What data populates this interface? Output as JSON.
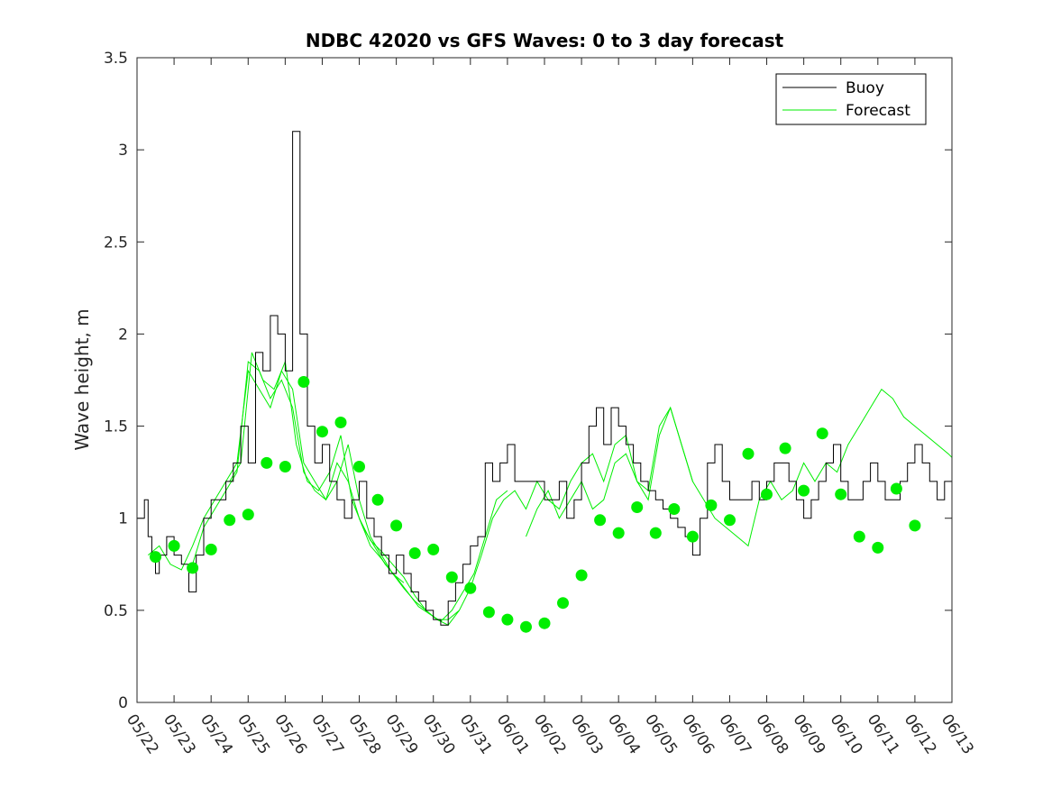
{
  "chart_data": {
    "type": "line",
    "title": "NDBC 42020 vs GFS Waves: 0 to 3 day forecast",
    "xlabel": "",
    "ylabel": "Wave height, m",
    "ylim": [
      0,
      3.5
    ],
    "yticks": [
      "0",
      "0.5",
      "1",
      "1.5",
      "2",
      "2.5",
      "3",
      "3.5"
    ],
    "xticks": [
      "05/22",
      "05/23",
      "05/24",
      "05/25",
      "05/26",
      "05/27",
      "05/28",
      "05/29",
      "05/30",
      "05/31",
      "06/01",
      "06/02",
      "06/03",
      "06/04",
      "06/05",
      "06/06",
      "06/07",
      "06/08",
      "06/09",
      "06/10",
      "06/11",
      "06/12",
      "06/13"
    ],
    "xlim_days": [
      0,
      22
    ],
    "grid": false,
    "legend": {
      "placement": "top-right",
      "entries": [
        "Buoy",
        "Forecast"
      ]
    },
    "colors": {
      "buoy": "#000000",
      "forecast": "#00ee00"
    },
    "buoy": {
      "name": "Buoy",
      "x": [
        0,
        0.2,
        0.3,
        0.4,
        0.5,
        0.6,
        0.8,
        1.0,
        1.2,
        1.4,
        1.6,
        1.8,
        2.0,
        2.2,
        2.4,
        2.6,
        2.8,
        3.0,
        3.2,
        3.4,
        3.6,
        3.8,
        4.0,
        4.2,
        4.4,
        4.6,
        4.8,
        5.0,
        5.2,
        5.4,
        5.6,
        5.8,
        6.0,
        6.2,
        6.4,
        6.6,
        6.8,
        7.0,
        7.2,
        7.4,
        7.6,
        7.8,
        8.0,
        8.2,
        8.4,
        8.6,
        8.8,
        9.0,
        9.2,
        9.4,
        9.6,
        9.8,
        10.0,
        10.2,
        10.4,
        10.6,
        10.8,
        11.0,
        11.2,
        11.4,
        11.6,
        11.8,
        12.0,
        12.2,
        12.4,
        12.6,
        12.8,
        13.0,
        13.2,
        13.4,
        13.6,
        13.8,
        14.0,
        14.2,
        14.4,
        14.6,
        14.8,
        15.0,
        15.2,
        15.4,
        15.6,
        15.8,
        16.0,
        16.2,
        16.4,
        16.6,
        16.8,
        17.0,
        17.2,
        17.4,
        17.6,
        17.8,
        18.0,
        18.2,
        18.4,
        18.6,
        18.8,
        19.0,
        19.2,
        19.4,
        19.6,
        19.8,
        20.0,
        20.2,
        20.4,
        20.6,
        20.8,
        21.0,
        21.2,
        21.4,
        21.6,
        21.8,
        22.0
      ],
      "y": [
        1.0,
        1.1,
        0.9,
        0.8,
        0.7,
        0.8,
        0.9,
        0.8,
        0.75,
        0.6,
        0.8,
        1.0,
        1.1,
        1.1,
        1.2,
        1.3,
        1.5,
        1.3,
        1.9,
        1.8,
        2.1,
        2.0,
        1.8,
        3.1,
        2.0,
        1.5,
        1.3,
        1.4,
        1.2,
        1.1,
        1.0,
        1.1,
        1.2,
        1.0,
        0.9,
        0.8,
        0.7,
        0.8,
        0.7,
        0.6,
        0.55,
        0.5,
        0.45,
        0.42,
        0.55,
        0.65,
        0.75,
        0.85,
        0.9,
        1.3,
        1.2,
        1.3,
        1.4,
        1.2,
        1.2,
        1.2,
        1.2,
        1.1,
        1.1,
        1.2,
        1.0,
        1.1,
        1.3,
        1.5,
        1.6,
        1.4,
        1.6,
        1.5,
        1.4,
        1.3,
        1.2,
        1.15,
        1.1,
        1.05,
        1.0,
        0.95,
        0.9,
        0.8,
        1.0,
        1.3,
        1.4,
        1.2,
        1.1,
        1.1,
        1.1,
        1.2,
        1.1,
        1.2,
        1.3,
        1.3,
        1.2,
        1.1,
        1.0,
        1.1,
        1.2,
        1.3,
        1.4,
        1.2,
        1.1,
        1.1,
        1.2,
        1.3,
        1.2,
        1.1,
        1.1,
        1.2,
        1.3,
        1.4,
        1.3,
        1.2,
        1.1,
        1.2,
        1.3
      ]
    },
    "forecast_runs": [
      {
        "x": [
          0.3,
          0.6,
          0.9,
          1.2,
          1.5,
          1.8,
          2.1,
          2.4,
          2.7,
          3.0,
          3.3,
          3.6,
          3.9,
          4.2,
          4.5,
          4.8,
          5.1,
          5.4,
          5.7,
          6.0,
          6.3,
          6.6,
          6.9,
          7.2
        ],
        "y": [
          0.8,
          0.85,
          0.75,
          0.72,
          0.85,
          1.0,
          1.1,
          1.2,
          1.3,
          1.8,
          1.7,
          1.6,
          1.8,
          1.7,
          1.3,
          1.2,
          1.1,
          1.2,
          1.4,
          1.1,
          0.9,
          0.8,
          0.7,
          0.65
        ]
      },
      {
        "x": [
          1.5,
          1.8,
          2.1,
          2.4,
          2.7,
          3.0,
          3.3,
          3.6,
          3.9,
          4.2,
          4.5,
          4.8,
          5.1,
          5.4,
          5.7,
          6.0,
          6.3,
          6.6,
          6.9,
          7.2,
          7.5,
          7.8,
          8.1,
          8.4,
          8.7
        ],
        "y": [
          0.75,
          0.95,
          1.05,
          1.15,
          1.25,
          1.85,
          1.8,
          1.65,
          1.75,
          1.6,
          1.25,
          1.15,
          1.1,
          1.3,
          1.2,
          1.0,
          0.85,
          0.78,
          0.7,
          0.62,
          0.55,
          0.5,
          0.45,
          0.45,
          0.5
        ]
      },
      {
        "x": [
          2.5,
          2.8,
          3.1,
          3.4,
          3.7,
          4.0,
          4.3,
          4.6,
          4.9,
          5.2,
          5.5,
          5.8,
          6.1,
          6.4,
          6.7,
          7.0,
          7.3,
          7.6,
          7.9,
          8.2,
          8.5,
          8.8,
          9.1,
          9.4,
          9.7,
          10.0
        ],
        "y": [
          1.2,
          1.3,
          1.9,
          1.75,
          1.7,
          1.85,
          1.4,
          1.2,
          1.15,
          1.25,
          1.45,
          1.1,
          0.95,
          0.85,
          0.75,
          0.68,
          0.6,
          0.52,
          0.48,
          0.44,
          0.5,
          0.6,
          0.7,
          0.9,
          1.1,
          1.15
        ]
      },
      {
        "x": [
          6.0,
          6.3,
          6.6,
          6.9,
          7.2,
          7.5,
          7.8,
          8.1,
          8.4,
          8.7,
          9.0,
          9.3,
          9.6,
          9.9,
          10.2,
          10.5,
          10.8,
          11.1,
          11.4,
          11.7,
          12.0,
          12.3,
          12.6,
          12.9,
          13.2,
          13.5,
          13.8,
          14.1,
          14.4,
          14.7,
          15.0
        ],
        "y": [
          1.0,
          0.88,
          0.82,
          0.75,
          0.68,
          0.58,
          0.5,
          0.45,
          0.42,
          0.5,
          0.62,
          0.8,
          1.0,
          1.1,
          1.15,
          1.05,
          1.2,
          1.1,
          1.05,
          1.2,
          1.3,
          1.35,
          1.2,
          1.4,
          1.45,
          1.2,
          1.1,
          1.45,
          1.6,
          1.4,
          1.2
        ]
      },
      {
        "x": [
          10.5,
          10.8,
          11.1,
          11.4,
          11.7,
          12.0,
          12.3,
          12.6,
          12.9,
          13.2,
          13.5,
          13.8,
          14.1,
          14.4,
          14.7,
          15.0,
          15.3,
          15.6,
          15.9,
          16.2,
          16.5,
          16.8,
          17.1,
          17.4,
          17.7,
          18.0,
          18.3,
          18.6,
          18.9,
          19.2,
          19.5,
          19.8,
          20.1,
          20.4,
          20.7,
          21.0,
          21.3,
          21.6,
          21.9,
          22.0
        ],
        "y": [
          0.9,
          1.05,
          1.15,
          1.0,
          1.1,
          1.2,
          1.05,
          1.1,
          1.3,
          1.35,
          1.2,
          1.15,
          1.5,
          1.6,
          1.4,
          1.2,
          1.1,
          1.0,
          0.95,
          0.9,
          0.85,
          1.1,
          1.2,
          1.1,
          1.15,
          1.3,
          1.2,
          1.3,
          1.25,
          1.4,
          1.5,
          1.6,
          1.7,
          1.65,
          1.55,
          1.5,
          1.45,
          1.4,
          1.35,
          1.33
        ]
      }
    ],
    "forecast_markers": {
      "x": [
        0.5,
        1.0,
        1.5,
        2.0,
        2.5,
        3.0,
        3.5,
        4.0,
        4.5,
        5.0,
        5.5,
        6.0,
        6.5,
        7.0,
        7.5,
        8.0,
        8.5,
        9.0,
        9.5,
        10.0,
        10.5,
        11.0,
        11.5,
        12.0,
        12.5,
        13.0,
        13.5,
        14.0,
        14.5,
        15.0,
        15.5,
        16.0,
        16.5,
        17.0,
        17.5,
        18.0,
        18.5,
        19.0,
        19.5,
        20.0,
        20.5,
        21.0
      ],
      "y": [
        0.79,
        0.85,
        0.73,
        0.83,
        0.99,
        1.02,
        1.3,
        1.28,
        1.74,
        1.47,
        1.52,
        1.28,
        1.1,
        0.96,
        0.81,
        0.83,
        0.68,
        0.62,
        0.49,
        0.45,
        0.41,
        0.43,
        0.54,
        0.69,
        0.99,
        0.92,
        1.06,
        0.92,
        1.05,
        0.9,
        1.07,
        0.99,
        1.35,
        1.13,
        1.38,
        1.15,
        1.46,
        1.13,
        0.9,
        0.84,
        1.16,
        0.96
      ]
    }
  }
}
